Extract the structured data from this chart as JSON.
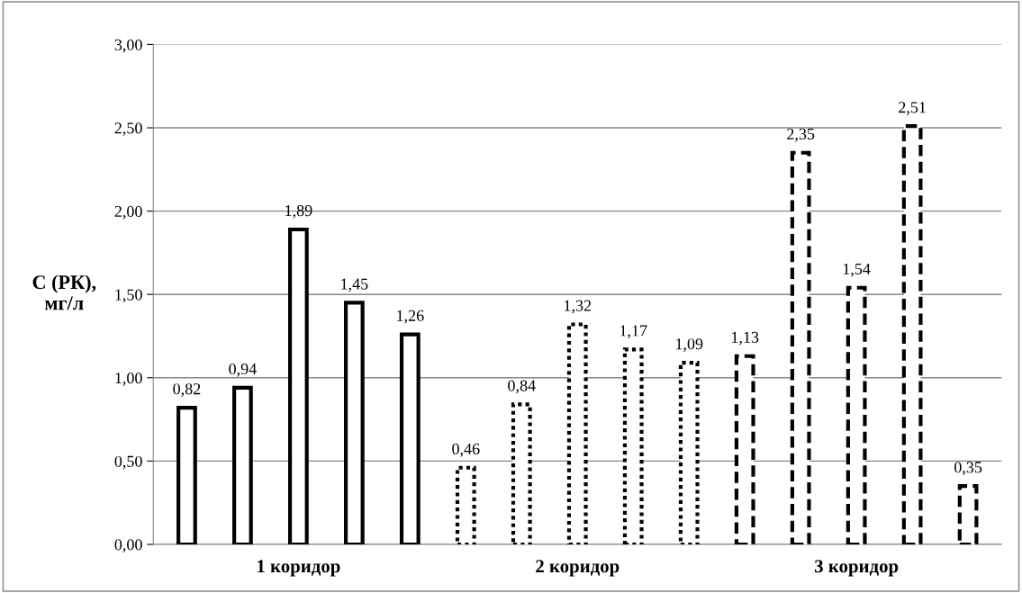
{
  "chart_data": {
    "type": "bar",
    "ylabel": "С (РК),\nмг/л",
    "categories": [
      null,
      null,
      "1 коридор",
      null,
      null,
      null,
      null,
      "2 коридор",
      null,
      null,
      null,
      null,
      "3 коридор",
      null,
      null
    ],
    "series": [
      {
        "color": "#000000",
        "line_style": "solid",
        "values": [
          0.82,
          0.94,
          1.89,
          1.45,
          1.26,
          null,
          null,
          null,
          null,
          null,
          null,
          null,
          null,
          null,
          null
        ],
        "value_labels": [
          "0,82",
          "0,94",
          "1,89",
          "1,45",
          "1,26",
          null,
          null,
          null,
          null,
          null,
          null,
          null,
          null,
          null,
          null
        ]
      },
      {
        "color": "#000000",
        "line_style": "dotted",
        "values": [
          null,
          null,
          null,
          null,
          null,
          0.46,
          0.84,
          1.32,
          1.17,
          1.09,
          null,
          null,
          null,
          null,
          null
        ],
        "value_labels": [
          null,
          null,
          null,
          null,
          null,
          "0,46",
          "0,84",
          "1,32",
          "1,17",
          "1,09",
          null,
          null,
          null,
          null,
          null
        ]
      },
      {
        "color": "#000000",
        "line_style": "dashed",
        "values": [
          null,
          null,
          null,
          null,
          null,
          null,
          null,
          null,
          null,
          null,
          1.13,
          2.35,
          1.54,
          2.51,
          0.35
        ],
        "value_labels": [
          null,
          null,
          null,
          null,
          null,
          null,
          null,
          null,
          null,
          null,
          "1,13",
          "2,35",
          "1,54",
          "2,51",
          "0,35"
        ]
      }
    ],
    "ylim": [
      0,
      3
    ],
    "yticks": [
      {
        "value": 0,
        "label": "0,00"
      },
      {
        "value": 0.5,
        "label": "0,50"
      },
      {
        "value": 1,
        "label": "1,00"
      },
      {
        "value": 1.5,
        "label": "1,50"
      },
      {
        "value": 2,
        "label": "2,00"
      },
      {
        "value": 2.5,
        "label": "2,50"
      },
      {
        "value": 3,
        "label": "3,00"
      }
    ],
    "grid": "y"
  }
}
